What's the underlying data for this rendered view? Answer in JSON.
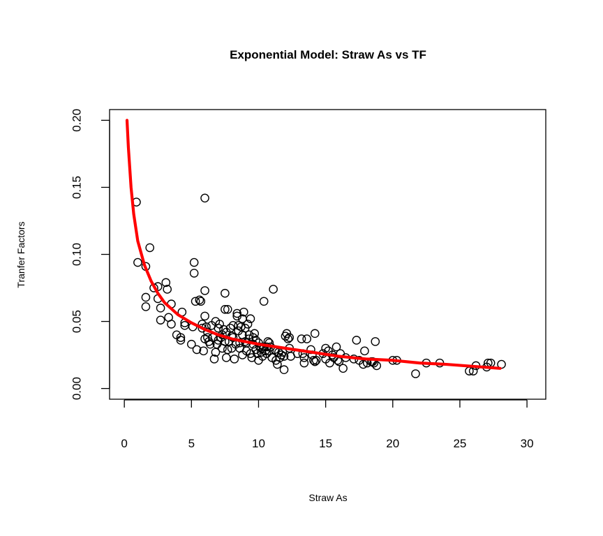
{
  "chart_data": {
    "type": "scatter",
    "title": "Exponential Model: Straw As vs TF",
    "xlabel": "Straw As",
    "ylabel": "Tranfer Factors",
    "xlim": [
      -1.1,
      31.4
    ],
    "ylim": [
      -0.008,
      0.208
    ],
    "xticks": [
      0,
      5,
      10,
      15,
      20,
      25,
      30
    ],
    "yticks": [
      0.0,
      0.05,
      0.1,
      0.15,
      0.2
    ],
    "ytick_labels": [
      "0.00",
      "0.05",
      "0.10",
      "0.15",
      "0.20"
    ],
    "grid": false,
    "legend": "none",
    "point_color": "#000000",
    "fit_color": "#ff0000",
    "points": [
      [
        0.9,
        0.139
      ],
      [
        1.0,
        0.094
      ],
      [
        1.6,
        0.091
      ],
      [
        1.9,
        0.105
      ],
      [
        1.6,
        0.068
      ],
      [
        1.6,
        0.061
      ],
      [
        2.2,
        0.075
      ],
      [
        2.5,
        0.076
      ],
      [
        2.5,
        0.067
      ],
      [
        2.7,
        0.06
      ],
      [
        2.7,
        0.051
      ],
      [
        3.1,
        0.079
      ],
      [
        3.2,
        0.074
      ],
      [
        3.3,
        0.053
      ],
      [
        3.5,
        0.063
      ],
      [
        3.5,
        0.048
      ],
      [
        3.9,
        0.04
      ],
      [
        4.2,
        0.036
      ],
      [
        4.2,
        0.038
      ],
      [
        4.3,
        0.057
      ],
      [
        4.5,
        0.049
      ],
      [
        4.5,
        0.047
      ],
      [
        5.0,
        0.033
      ],
      [
        5.1,
        0.046
      ],
      [
        5.2,
        0.094
      ],
      [
        5.2,
        0.086
      ],
      [
        5.3,
        0.065
      ],
      [
        5.4,
        0.029
      ],
      [
        5.6,
        0.066
      ],
      [
        5.7,
        0.065
      ],
      [
        5.8,
        0.048
      ],
      [
        5.8,
        0.045
      ],
      [
        5.9,
        0.028
      ],
      [
        6.0,
        0.142
      ],
      [
        6.0,
        0.073
      ],
      [
        6.0,
        0.054
      ],
      [
        6.0,
        0.037
      ],
      [
        6.1,
        0.046
      ],
      [
        6.2,
        0.042
      ],
      [
        6.2,
        0.038
      ],
      [
        6.3,
        0.035
      ],
      [
        6.4,
        0.033
      ],
      [
        6.5,
        0.047
      ],
      [
        6.6,
        0.038
      ],
      [
        6.7,
        0.022
      ],
      [
        6.8,
        0.05
      ],
      [
        6.8,
        0.027
      ],
      [
        6.9,
        0.033
      ],
      [
        7.0,
        0.036
      ],
      [
        7.0,
        0.045
      ],
      [
        7.1,
        0.048
      ],
      [
        7.2,
        0.038
      ],
      [
        7.3,
        0.04
      ],
      [
        7.3,
        0.03
      ],
      [
        7.4,
        0.044
      ],
      [
        7.5,
        0.059
      ],
      [
        7.5,
        0.071
      ],
      [
        7.5,
        0.035
      ],
      [
        7.6,
        0.042
      ],
      [
        7.6,
        0.023
      ],
      [
        7.7,
        0.029
      ],
      [
        7.7,
        0.059
      ],
      [
        7.8,
        0.035
      ],
      [
        7.9,
        0.045
      ],
      [
        8.0,
        0.03
      ],
      [
        8.0,
        0.039
      ],
      [
        8.1,
        0.047
      ],
      [
        8.1,
        0.038
      ],
      [
        8.2,
        0.022
      ],
      [
        8.3,
        0.033
      ],
      [
        8.4,
        0.056
      ],
      [
        8.4,
        0.054
      ],
      [
        8.5,
        0.047
      ],
      [
        8.5,
        0.043
      ],
      [
        8.6,
        0.034
      ],
      [
        8.6,
        0.03
      ],
      [
        8.7,
        0.046
      ],
      [
        8.8,
        0.04
      ],
      [
        8.8,
        0.052
      ],
      [
        8.8,
        0.025
      ],
      [
        8.9,
        0.057
      ],
      [
        9.0,
        0.045
      ],
      [
        9.0,
        0.035
      ],
      [
        9.1,
        0.034
      ],
      [
        9.1,
        0.028
      ],
      [
        9.2,
        0.048
      ],
      [
        9.3,
        0.04
      ],
      [
        9.3,
        0.037
      ],
      [
        9.4,
        0.052
      ],
      [
        9.4,
        0.026
      ],
      [
        9.5,
        0.023
      ],
      [
        9.6,
        0.033
      ],
      [
        9.6,
        0.038
      ],
      [
        9.7,
        0.041
      ],
      [
        9.8,
        0.036
      ],
      [
        9.8,
        0.029
      ],
      [
        9.9,
        0.026
      ],
      [
        10.0,
        0.021
      ],
      [
        10.0,
        0.034
      ],
      [
        10.1,
        0.031
      ],
      [
        10.2,
        0.03
      ],
      [
        10.2,
        0.027
      ],
      [
        10.3,
        0.024
      ],
      [
        10.4,
        0.065
      ],
      [
        10.4,
        0.031
      ],
      [
        10.5,
        0.028
      ],
      [
        10.6,
        0.026
      ],
      [
        10.6,
        0.031
      ],
      [
        10.7,
        0.035
      ],
      [
        10.8,
        0.034
      ],
      [
        10.8,
        0.028
      ],
      [
        10.9,
        0.031
      ],
      [
        11.0,
        0.023
      ],
      [
        11.1,
        0.074
      ],
      [
        11.2,
        0.029
      ],
      [
        11.3,
        0.021
      ],
      [
        11.4,
        0.018
      ],
      [
        11.5,
        0.027
      ],
      [
        11.6,
        0.023
      ],
      [
        11.7,
        0.025
      ],
      [
        11.8,
        0.027
      ],
      [
        11.9,
        0.024
      ],
      [
        11.9,
        0.014
      ],
      [
        12.0,
        0.039
      ],
      [
        12.1,
        0.041
      ],
      [
        12.2,
        0.037
      ],
      [
        12.3,
        0.038
      ],
      [
        12.3,
        0.03
      ],
      [
        12.4,
        0.024
      ],
      [
        12.9,
        0.026
      ],
      [
        13.2,
        0.037
      ],
      [
        13.3,
        0.026
      ],
      [
        13.4,
        0.023
      ],
      [
        13.4,
        0.019
      ],
      [
        13.6,
        0.037
      ],
      [
        13.9,
        0.029
      ],
      [
        14.0,
        0.025
      ],
      [
        14.1,
        0.021
      ],
      [
        14.2,
        0.02
      ],
      [
        14.2,
        0.041
      ],
      [
        14.3,
        0.021
      ],
      [
        14.8,
        0.026
      ],
      [
        15.0,
        0.03
      ],
      [
        15.0,
        0.022
      ],
      [
        15.2,
        0.028
      ],
      [
        15.3,
        0.019
      ],
      [
        15.5,
        0.025
      ],
      [
        15.6,
        0.023
      ],
      [
        15.8,
        0.031
      ],
      [
        15.9,
        0.021
      ],
      [
        16.0,
        0.02
      ],
      [
        16.1,
        0.026
      ],
      [
        16.3,
        0.015
      ],
      [
        16.5,
        0.023
      ],
      [
        17.1,
        0.022
      ],
      [
        17.3,
        0.036
      ],
      [
        17.5,
        0.021
      ],
      [
        17.8,
        0.018
      ],
      [
        17.9,
        0.028
      ],
      [
        18.1,
        0.019
      ],
      [
        18.4,
        0.02
      ],
      [
        18.5,
        0.02
      ],
      [
        18.6,
        0.019
      ],
      [
        18.7,
        0.035
      ],
      [
        18.8,
        0.017
      ],
      [
        20.0,
        0.021
      ],
      [
        20.3,
        0.021
      ],
      [
        21.7,
        0.011
      ],
      [
        22.5,
        0.019
      ],
      [
        23.5,
        0.019
      ],
      [
        25.7,
        0.013
      ],
      [
        26.0,
        0.013
      ],
      [
        26.2,
        0.017
      ],
      [
        27.0,
        0.016
      ],
      [
        27.1,
        0.019
      ],
      [
        27.3,
        0.019
      ],
      [
        28.1,
        0.018
      ]
    ],
    "fit_line": [
      [
        0.2,
        0.2
      ],
      [
        0.3,
        0.18
      ],
      [
        0.4,
        0.165
      ],
      [
        0.5,
        0.15
      ],
      [
        0.7,
        0.13
      ],
      [
        1.0,
        0.11
      ],
      [
        1.5,
        0.092
      ],
      [
        2.0,
        0.08
      ],
      [
        2.5,
        0.071
      ],
      [
        3.0,
        0.064
      ],
      [
        4.0,
        0.055
      ],
      [
        5.0,
        0.049
      ],
      [
        6.0,
        0.044
      ],
      [
        7.0,
        0.04
      ],
      [
        8.0,
        0.037
      ],
      [
        9.0,
        0.035
      ],
      [
        10.0,
        0.033
      ],
      [
        12.0,
        0.03
      ],
      [
        14.0,
        0.027
      ],
      [
        16.0,
        0.024
      ],
      [
        18.0,
        0.022
      ],
      [
        20.0,
        0.021
      ],
      [
        22.0,
        0.019
      ],
      [
        24.0,
        0.018
      ],
      [
        26.0,
        0.0165
      ],
      [
        28.0,
        0.015
      ]
    ]
  }
}
